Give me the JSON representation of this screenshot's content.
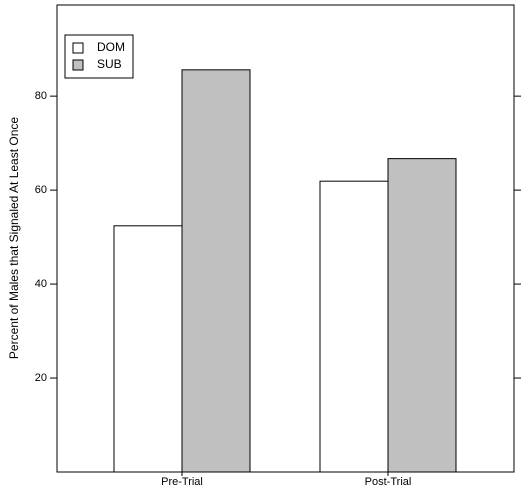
{
  "chart_data": {
    "type": "bar",
    "y_label": "Percent of Males that Signaled At Least Once",
    "categories": [
      "Pre-Trial",
      "Post-Trial"
    ],
    "series": [
      {
        "name": "DOM",
        "color": "#ffffff",
        "values": [
          52.4,
          61.9
        ]
      },
      {
        "name": "SUB",
        "color": "#c0c0c0",
        "values": [
          85.6,
          66.7
        ]
      }
    ],
    "ylim": [
      0,
      99.4
    ],
    "yticks": [
      20,
      40,
      60,
      80
    ],
    "legend": "upper left"
  }
}
